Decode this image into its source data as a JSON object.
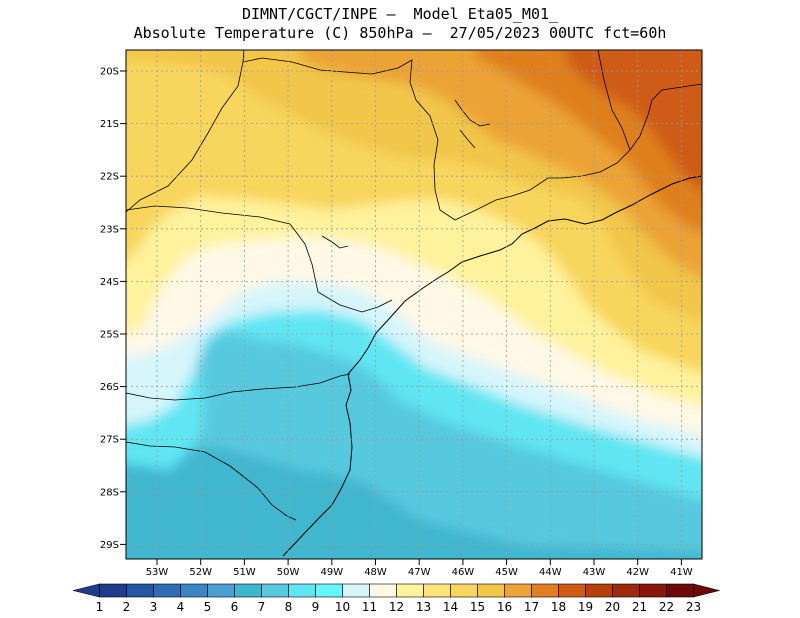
{
  "header": {
    "line1": "DIMNT/CGCT/INPE –  Model Eta05_M01_",
    "line2": "Absolute Temperature (C) 850hPa –  27/05/2023 00UTC fct=60h"
  },
  "map": {
    "lat_labels": [
      "20S",
      "21S",
      "22S",
      "23S",
      "24S",
      "25S",
      "26S",
      "27S",
      "28S",
      "29S"
    ],
    "lon_labels": [
      "53W",
      "52W",
      "51W",
      "50W",
      "49W",
      "48W",
      "47W",
      "46W",
      "45W",
      "44W",
      "43W",
      "42W",
      "41W"
    ],
    "grid": true,
    "field_colors": {
      "cold_deep": "#3fb6cf",
      "cold": "#56c9df",
      "cyan": "#5ee6f2",
      "light_cyan": "#d5f5fb",
      "cream": "#fff8e6",
      "light_yellow": "#fff29c",
      "yellow": "#f8d55c",
      "gold": "#f1c64a",
      "orange": "#eca336",
      "dark_orange": "#df7f1e",
      "rust": "#cf5c12"
    }
  },
  "colorbar": {
    "labels": [
      "1",
      "2",
      "3",
      "4",
      "5",
      "6",
      "7",
      "8",
      "9",
      "10",
      "11",
      "12",
      "13",
      "14",
      "15",
      "16",
      "17",
      "18",
      "19",
      "20",
      "21",
      "22",
      "23"
    ],
    "colors": [
      "#1d3c8c",
      "#2556a3",
      "#2f6eb6",
      "#3b86c6",
      "#4a9fd2",
      "#3fb6cf",
      "#56c9df",
      "#5ee6f2",
      "#65f6fb",
      "#d5f5fb",
      "#fff8e6",
      "#fff29c",
      "#fce37a",
      "#f8d55c",
      "#f1c64a",
      "#eca336",
      "#df7f1e",
      "#cf5c12",
      "#b5400c",
      "#9c2c0b",
      "#87180c",
      "#6e0909"
    ],
    "end_low": "#1d3c8c",
    "end_high": "#6e0909"
  }
}
